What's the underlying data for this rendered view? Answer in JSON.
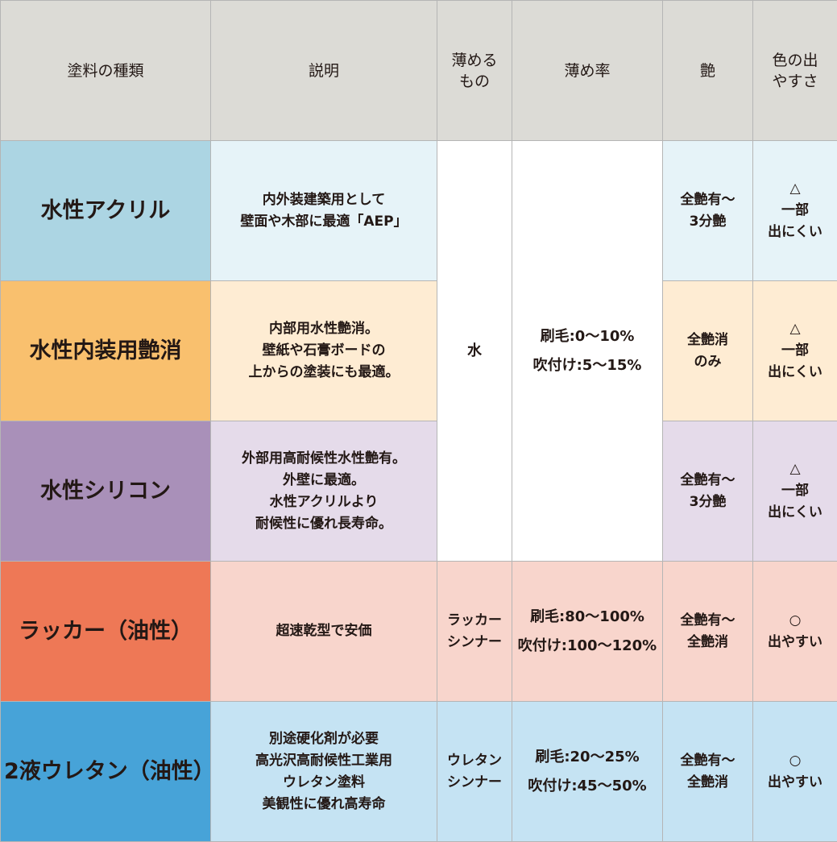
{
  "headers": [
    "塗料の種類",
    "説明",
    "薄める\nもの",
    "薄め率",
    "艶",
    "色の出\nやすさ"
  ],
  "rows": [
    {
      "name": "水性アクリル",
      "description": "内外装建築用として\n壁面や木部に最適「AEP」",
      "thinner": "水",
      "ratio": "刷毛:0〜10%\n吹付け:5〜15%",
      "gloss": "全艶有〜\n3分艶",
      "color": "△\n一部\n出にくい"
    },
    {
      "name": "水性内装用艶消",
      "description": "内部用水性艶消。\n壁紙や石膏ボードの\n上からの塗装にも最適。",
      "gloss": "全艶消\nのみ",
      "color": "△\n一部\n出にくい"
    },
    {
      "name": "水性シリコン",
      "description": "外部用高耐候性水性艶有。\n外壁に最適。\n水性アクリルより\n耐候性に優れ長寿命。",
      "gloss": "全艶有〜\n3分艶",
      "color": "△\n一部\n出にくい"
    },
    {
      "name": "ラッカー（油性）",
      "description": "超速乾型で安価",
      "thinner": "ラッカー\nシンナー",
      "ratio": "刷毛:80〜100%\n吹付け:100〜120%",
      "gloss": "全艶有〜\n全艶消",
      "color": "○\n出やすい"
    },
    {
      "name": "2液ウレタン（油性）",
      "description": "別途硬化剤が必要\n高光沢高耐候性工業用\nウレタン塗料\n美観性に優れ高寿命",
      "thinner": "ウレタン\nシンナー",
      "ratio": "刷毛:20〜25%\n吹付け:45〜50%",
      "gloss": "全艶有〜\n全艶消",
      "color": "○\n出やすい"
    }
  ],
  "colors": {
    "header": "#dcdbd6",
    "acrylic": "#acd5e3",
    "interior": "#f9c06e",
    "silicone": "#a990b9",
    "lacquer": "#ee7856",
    "urethane": "#47a3d8"
  }
}
